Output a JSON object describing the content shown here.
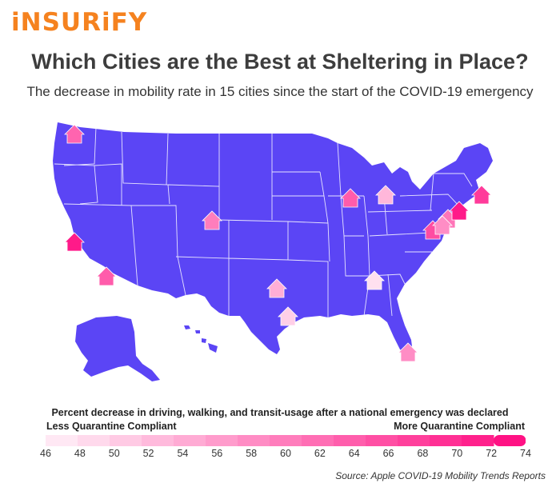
{
  "brand": {
    "logo_text": "iNSURiFY",
    "color": "#f5821f"
  },
  "header": {
    "title": "Which Cities are the Best at Sheltering in Place?",
    "subtitle": "The decrease in mobility rate in 15 cities since the start of the COVID-19 emergency"
  },
  "map": {
    "land_color": "#5b45f5",
    "border_color": "#ffffff"
  },
  "chart_data": {
    "type": "map",
    "value_label": "Percent decrease in driving, walking, and transit-usage after a national emergency was declared",
    "markers": [
      {
        "location": "Seattle",
        "value": 63
      },
      {
        "location": "San Francisco",
        "value": 72
      },
      {
        "location": "Los Angeles",
        "value": 64
      },
      {
        "location": "Denver",
        "value": 60
      },
      {
        "location": "Dallas",
        "value": 54
      },
      {
        "location": "Houston",
        "value": 50
      },
      {
        "location": "Chicago",
        "value": 64
      },
      {
        "location": "Detroit",
        "value": 53
      },
      {
        "location": "Atlanta",
        "value": 48
      },
      {
        "location": "Miami",
        "value": 58
      },
      {
        "location": "Washington, DC",
        "value": 66
      },
      {
        "location": "Philadelphia",
        "value": 61
      },
      {
        "location": "New York",
        "value": 72
      },
      {
        "location": "Boston",
        "value": 68
      },
      {
        "location": "Baltimore",
        "value": 58
      }
    ]
  },
  "legend": {
    "title": "Percent decrease in driving, walking, and transit-usage after a national emergency was declared",
    "less_label": "Less Quarantine Compliant",
    "more_label": "More Quarantine Compliant",
    "ticks": [
      "46",
      "48",
      "50",
      "52",
      "54",
      "56",
      "58",
      "60",
      "62",
      "64",
      "66",
      "68",
      "70",
      "72",
      "74"
    ],
    "range": [
      46,
      74
    ],
    "color_low": "#fff0f8",
    "color_high": "#ff0a80"
  },
  "source": "Source: Apple COVID-19 Mobility Trends Reports"
}
